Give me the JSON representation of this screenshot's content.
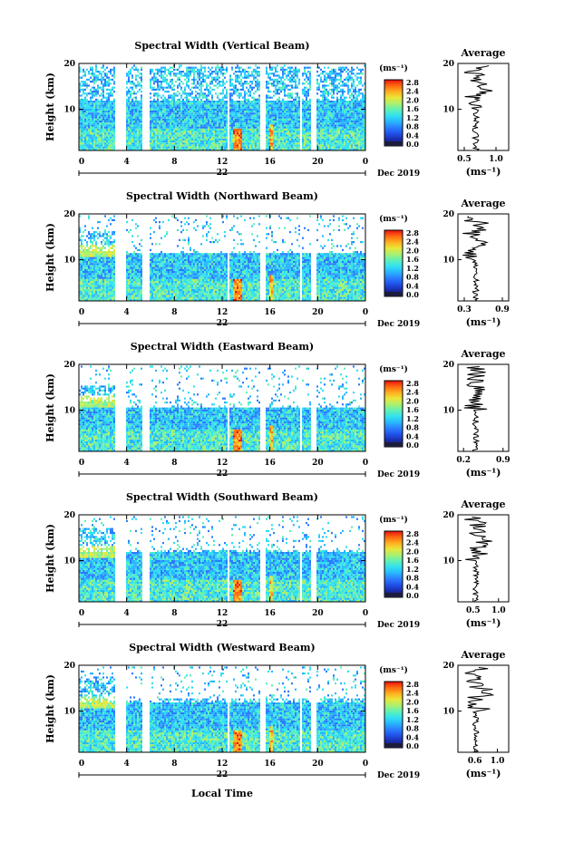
{
  "figure": {
    "bottom_label": "Local Time",
    "date_label": "Dec 2019",
    "day_label": "22"
  },
  "colors": {
    "colormap": [
      "#1c1c5c",
      "#1a2aa8",
      "#1f4fe6",
      "#2b7bff",
      "#28b4ff",
      "#31e0f0",
      "#5ef0b8",
      "#a8f070",
      "#e8e83a",
      "#ffb020",
      "#ff6a10",
      "#e81010"
    ]
  },
  "chart_data": [
    {
      "type": "heatmap",
      "title": "Spectral Width (Vertical Beam)",
      "ylabel": "Height (km)",
      "x_ticks": [
        "0",
        "4",
        "8",
        "12",
        "16",
        "20",
        "0"
      ],
      "y_ticks": [
        "20",
        "10"
      ],
      "xlim": [
        0,
        24
      ],
      "ylim": [
        1,
        20
      ],
      "colorbar": {
        "unit": "(ms⁻¹)",
        "ticks": [
          "2.8",
          "2.4",
          "2.0",
          "1.6",
          "1.2",
          "0.8",
          "0.4",
          "0.0"
        ]
      },
      "average": {
        "title": "Average",
        "xlabel": "(ms⁻¹)",
        "x_ticks": [
          "0.5",
          "1.0"
        ],
        "y_ticks": [
          "20",
          "10"
        ],
        "xlim": [
          0.4,
          1.2
        ]
      }
    },
    {
      "type": "heatmap",
      "title": "Spectral Width (Northward Beam)",
      "ylabel": "Height (km)",
      "x_ticks": [
        "0",
        "4",
        "8",
        "12",
        "16",
        "20",
        "0"
      ],
      "y_ticks": [
        "20",
        "10"
      ],
      "xlim": [
        0,
        24
      ],
      "ylim": [
        1,
        20
      ],
      "colorbar": {
        "unit": "(ms⁻¹)",
        "ticks": [
          "2.8",
          "2.4",
          "2.0",
          "1.6",
          "1.2",
          "0.8",
          "0.4",
          "0.0"
        ]
      },
      "average": {
        "title": "Average",
        "xlabel": "(ms⁻¹)",
        "x_ticks": [
          "0.3",
          "0.9"
        ],
        "y_ticks": [
          "20",
          "10"
        ],
        "xlim": [
          0.2,
          1.0
        ]
      }
    },
    {
      "type": "heatmap",
      "title": "Spectral Width (Eastward Beam)",
      "ylabel": "Height (km)",
      "x_ticks": [
        "0",
        "4",
        "8",
        "12",
        "16",
        "20",
        "0"
      ],
      "y_ticks": [
        "20",
        "10"
      ],
      "xlim": [
        0,
        24
      ],
      "ylim": [
        1,
        20
      ],
      "colorbar": {
        "unit": "(ms⁻¹)",
        "ticks": [
          "2.8",
          "2.4",
          "2.0",
          "1.6",
          "1.2",
          "0.8",
          "0.4",
          "0.0"
        ]
      },
      "average": {
        "title": "Average",
        "xlabel": "(ms⁻¹)",
        "x_ticks": [
          "0.2",
          "0.9"
        ],
        "y_ticks": [
          "20",
          "10"
        ],
        "xlim": [
          0.1,
          1.0
        ]
      }
    },
    {
      "type": "heatmap",
      "title": "Spectral Width (Southward Beam)",
      "ylabel": "Height (km)",
      "x_ticks": [
        "0",
        "4",
        "8",
        "12",
        "16",
        "20",
        "0"
      ],
      "y_ticks": [
        "20",
        "10"
      ],
      "xlim": [
        0,
        24
      ],
      "ylim": [
        1,
        20
      ],
      "colorbar": {
        "unit": "(ms⁻¹)",
        "ticks": [
          "2.8",
          "2.4",
          "2.0",
          "1.6",
          "1.2",
          "0.8",
          "0.4",
          "0.0"
        ]
      },
      "average": {
        "title": "Average",
        "xlabel": "(ms⁻¹)",
        "x_ticks": [
          "0.5",
          "1.0"
        ],
        "y_ticks": [
          "20",
          "10"
        ],
        "xlim": [
          0.2,
          1.2
        ]
      }
    },
    {
      "type": "heatmap",
      "title": "Spectral Width (Westward Beam)",
      "ylabel": "Height (km)",
      "x_ticks": [
        "0",
        "4",
        "8",
        "12",
        "16",
        "20",
        "0"
      ],
      "y_ticks": [
        "20",
        "10"
      ],
      "xlim": [
        0,
        24
      ],
      "ylim": [
        1,
        20
      ],
      "colorbar": {
        "unit": "(ms⁻¹)",
        "ticks": [
          "2.8",
          "2.4",
          "2.0",
          "1.6",
          "1.2",
          "0.8",
          "0.4",
          "0.0"
        ]
      },
      "average": {
        "title": "Average",
        "xlabel": "(ms⁻¹)",
        "x_ticks": [
          "0.6",
          "1.0"
        ],
        "y_ticks": [
          "20",
          "10"
        ],
        "xlim": [
          0.3,
          1.2
        ]
      }
    }
  ]
}
